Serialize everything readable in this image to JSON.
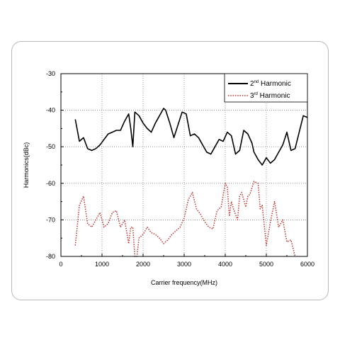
{
  "chart_data": {
    "type": "line",
    "title": "",
    "xlabel": "Carrier frequency(MHz)",
    "ylabel": "Harmonics(dBc)",
    "xlim": [
      0,
      6000
    ],
    "ylim": [
      -80,
      -30
    ],
    "xticks": [
      0,
      1000,
      2000,
      3000,
      4000,
      5000,
      6000
    ],
    "yticks": [
      -80,
      -70,
      -60,
      -50,
      -40,
      -30
    ],
    "xtick_labels": [
      "0",
      "1000",
      "2000",
      "3000",
      "4000",
      "5000",
      "6000"
    ],
    "ytick_labels": [
      "-80",
      "-70",
      "-60",
      "-50",
      "-40",
      "-30"
    ],
    "grid": true,
    "legend_position": "top-right",
    "series": [
      {
        "name": "2nd Harmonic",
        "legend_base": "2",
        "legend_sup": "nd",
        "legend_rest": " Harmonic",
        "color": "#000000",
        "style": "solid",
        "x": [
          350,
          450,
          550,
          650,
          750,
          850,
          950,
          1050,
          1150,
          1250,
          1350,
          1450,
          1550,
          1650,
          1700,
          1750,
          1800,
          1900,
          2000,
          2100,
          2200,
          2300,
          2400,
          2500,
          2550,
          2650,
          2750,
          2850,
          2950,
          3050,
          3100,
          3150,
          3250,
          3350,
          3450,
          3550,
          3650,
          3750,
          3850,
          3950,
          4050,
          4150,
          4250,
          4350,
          4450,
          4550,
          4650,
          4700,
          4800,
          4900,
          5000,
          5100,
          5200,
          5300,
          5400,
          5500,
          5600,
          5700,
          5800,
          5900,
          6000
        ],
        "y": [
          -42.5,
          -48.5,
          -47.5,
          -50.5,
          -51.0,
          -50.5,
          -49.5,
          -48.0,
          -46.5,
          -46.0,
          -45.5,
          -45.5,
          -43.0,
          -41.0,
          -45.0,
          -50.0,
          -40.5,
          -41.5,
          -43.5,
          -45.0,
          -46.0,
          -43.5,
          -41.5,
          -39.5,
          -40.0,
          -43.5,
          -47.5,
          -44.0,
          -40.5,
          -41.0,
          -44.0,
          -47.0,
          -46.5,
          -47.5,
          -49.5,
          -51.5,
          -52.0,
          -50.0,
          -48.0,
          -48.5,
          -46.0,
          -47.0,
          -52.0,
          -51.0,
          -45.5,
          -46.5,
          -49.0,
          -51.5,
          -53.5,
          -55.0,
          -53.0,
          -54.5,
          -53.5,
          -51.5,
          -49.5,
          -46.0,
          -51.0,
          -50.5,
          -46.0,
          -41.5,
          -42.0
        ]
      },
      {
        "name": "3rd Harmonic",
        "legend_base": "3",
        "legend_sup": "rd",
        "legend_rest": " Harmonic",
        "color": "#c0332b",
        "style": "dotted",
        "x": [
          350,
          450,
          550,
          650,
          750,
          850,
          950,
          1050,
          1150,
          1250,
          1350,
          1450,
          1550,
          1650,
          1700,
          1750,
          1800,
          1850,
          1900,
          2000,
          2100,
          2200,
          2300,
          2400,
          2500,
          2600,
          2700,
          2800,
          2900,
          3000,
          3100,
          3200,
          3300,
          3400,
          3500,
          3600,
          3700,
          3800,
          3900,
          4000,
          4050,
          4100,
          4150,
          4200,
          4300,
          4350,
          4400,
          4500,
          4550,
          4600,
          4700,
          4800,
          4850,
          4900,
          5000,
          5100,
          5200,
          5300,
          5400,
          5500,
          5600,
          5700
        ],
        "y": [
          -77.0,
          -66.0,
          -63.5,
          -71.0,
          -72.0,
          -70.0,
          -68.0,
          -72.0,
          -71.0,
          -68.0,
          -67.5,
          -72.0,
          -70.0,
          -76.5,
          -72.0,
          -72.0,
          -80.0,
          -80.0,
          -75.0,
          -74.0,
          -72.0,
          -73.5,
          -74.0,
          -75.0,
          -76.5,
          -75.5,
          -74.0,
          -73.0,
          -72.0,
          -69.5,
          -64.5,
          -62.5,
          -67.0,
          -68.5,
          -70.5,
          -72.0,
          -72.5,
          -67.5,
          -66.5,
          -60.0,
          -61.0,
          -69.0,
          -65.0,
          -67.0,
          -70.0,
          -63.5,
          -62.5,
          -66.5,
          -63.5,
          -63.0,
          -59.5,
          -60.0,
          -67.0,
          -66.0,
          -77.0,
          -70.5,
          -65.0,
          -72.0,
          -70.0,
          -76.0,
          -75.5,
          -80.0
        ]
      }
    ]
  }
}
